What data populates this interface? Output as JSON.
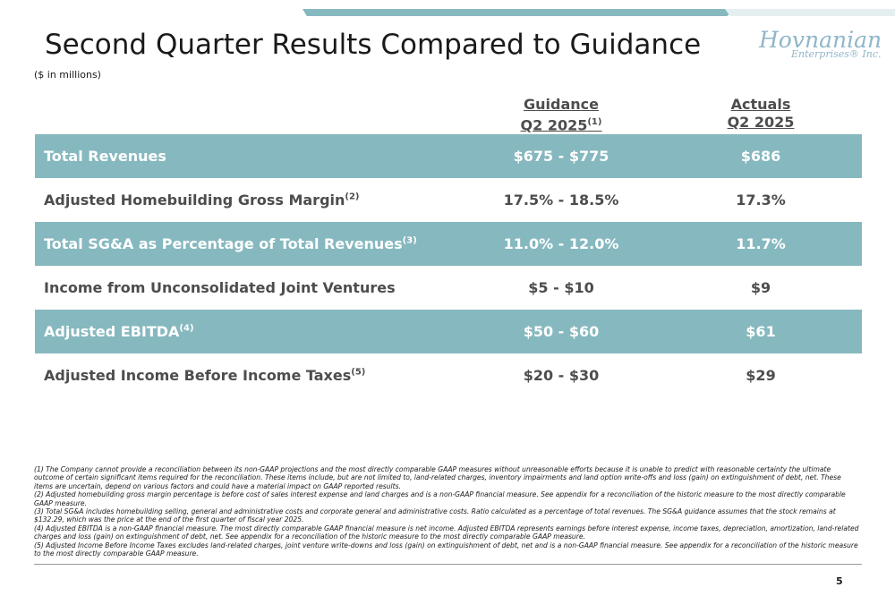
{
  "header": {
    "title": "Second Quarter Results Compared to Guidance",
    "subtitle": "($ in millions)"
  },
  "logo": {
    "main": "Hovnanian",
    "sub": "Enterprises® Inc."
  },
  "columns": {
    "guidance_line1": "Guidance",
    "guidance_line2": "Q2 2025",
    "guidance_note": "(1)",
    "actuals_line1": "Actuals",
    "actuals_line2": "Q2 2025"
  },
  "rows": [
    {
      "label": "Total Revenues",
      "note": "",
      "guidance": "$675 - $775",
      "actual": "$686"
    },
    {
      "label": "Adjusted Homebuilding Gross Margin",
      "note": "(2)",
      "guidance": "17.5% - 18.5%",
      "actual": "17.3%"
    },
    {
      "label": "Total SG&A as Percentage of Total Revenues",
      "note": "(3)",
      "guidance": "11.0% - 12.0%",
      "actual": "11.7%"
    },
    {
      "label": "Income from Unconsolidated Joint Ventures",
      "note": "",
      "guidance": "$5 - $10",
      "actual": "$9"
    },
    {
      "label": "Adjusted EBITDA",
      "note": "(4)",
      "guidance": "$50 - $60",
      "actual": "$61"
    },
    {
      "label": "Adjusted Income Before Income Taxes",
      "note": "(5)",
      "guidance": "$20 - $30",
      "actual": "$29"
    }
  ],
  "footnotes": [
    "(1) The Company cannot provide a reconciliation between its non-GAAP projections and the most directly comparable GAAP measures without unreasonable efforts because it is unable to predict with reasonable certainty the ultimate outcome of certain significant items required for the reconciliation. These items include, but are not limited to, land-related charges, inventory impairments and land option write-offs and loss (gain) on extinguishment of debt, net. These items are uncertain, depend on various factors and could have a material impact on GAAP reported results.",
    "(2) Adjusted homebuilding gross margin percentage is before cost of sales interest expense and land charges and is a non-GAAP financial measure. See appendix for a reconciliation of the historic measure to the most directly comparable GAAP measure.",
    "(3) Total SG&A includes homebuilding selling, general and administrative costs and corporate general and administrative costs. Ratio calculated as a percentage of total revenues. The SG&A guidance assumes that the stock remains at $132.29, which was the price at the end of the first quarter of fiscal year 2025.",
    "(4) Adjusted EBITDA is a non-GAAP financial measure. The most directly comparable GAAP financial measure is net income. Adjusted EBITDA represents earnings before interest expense, income taxes, depreciation, amortization, land-related charges and loss (gain) on extinguishment of debt, net. See appendix for a reconciliation of the historic measure to the most directly comparable GAAP measure.",
    "(5) Adjusted Income Before Income Taxes excludes land-related charges, joint venture write-downs and loss (gain) on extinguishment of debt, net and is a non-GAAP financial measure. See appendix for a reconciliation of the historic measure to the most directly comparable GAAP measure."
  ],
  "page_number": "5",
  "colors": {
    "accent": "#86b8bf",
    "logo": "#8fb6c9"
  }
}
